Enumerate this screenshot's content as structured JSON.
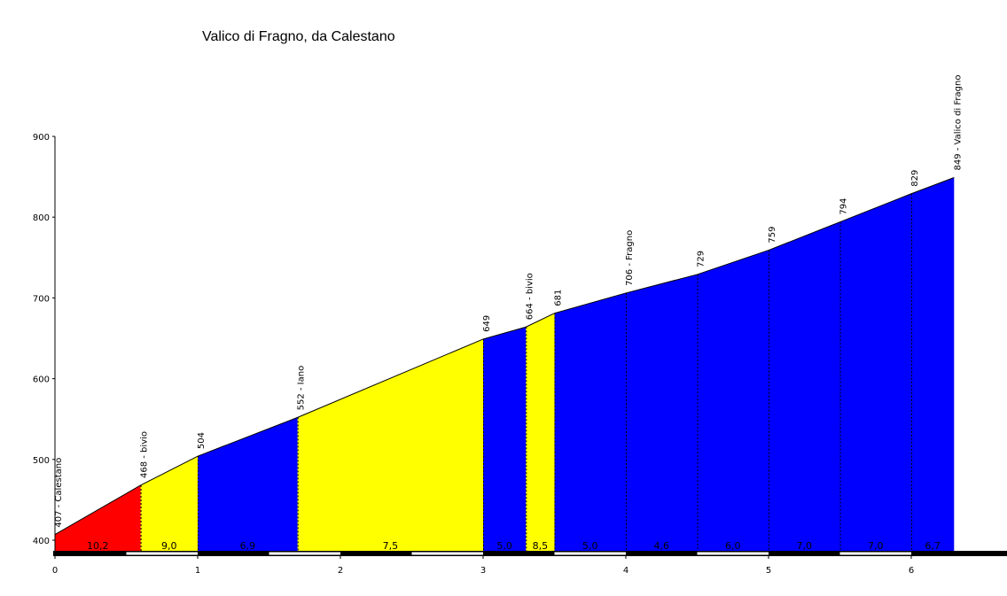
{
  "chart_data": {
    "type": "area",
    "title": "Valico di Fragno, da Calestano",
    "xlabel": "",
    "ylabel": "",
    "xlim": [
      0,
      6.3
    ],
    "ylim": [
      400,
      900
    ],
    "x_ticks": [
      "0",
      "1",
      "2",
      "3",
      "4",
      "5",
      "6"
    ],
    "y_ticks": [
      "400",
      "500",
      "600",
      "700",
      "800",
      "900"
    ],
    "points": [
      {
        "x": 0.0,
        "y": 407,
        "label": "407 - Calestano"
      },
      {
        "x": 0.6,
        "y": 468,
        "label": "468 - bivio"
      },
      {
        "x": 1.0,
        "y": 504,
        "label": "504"
      },
      {
        "x": 1.7,
        "y": 552,
        "label": "552 - Iano"
      },
      {
        "x": 3.0,
        "y": 649,
        "label": "649"
      },
      {
        "x": 3.3,
        "y": 664,
        "label": "664 - bivio"
      },
      {
        "x": 3.5,
        "y": 681,
        "label": "681"
      },
      {
        "x": 4.0,
        "y": 706,
        "label": "706 - Fragno"
      },
      {
        "x": 4.5,
        "y": 729,
        "label": "729"
      },
      {
        "x": 5.0,
        "y": 759,
        "label": "759"
      },
      {
        "x": 5.5,
        "y": 794,
        "label": "794"
      },
      {
        "x": 6.0,
        "y": 829,
        "label": "829"
      },
      {
        "x": 6.3,
        "y": 849,
        "label": "849 - Valico di Fragno"
      }
    ],
    "segments": [
      {
        "from": 0.0,
        "to": 0.6,
        "gradient": "10,2",
        "color": "#ff0000"
      },
      {
        "from": 0.6,
        "to": 1.0,
        "gradient": "9,0",
        "color": "#ffff00"
      },
      {
        "from": 1.0,
        "to": 1.7,
        "gradient": "6,9",
        "color": "#0000ff"
      },
      {
        "from": 1.7,
        "to": 3.0,
        "gradient": "7,5",
        "color": "#ffff00"
      },
      {
        "from": 3.0,
        "to": 3.3,
        "gradient": "5,0",
        "color": "#0000ff"
      },
      {
        "from": 3.3,
        "to": 3.5,
        "gradient": "8,5",
        "color": "#ffff00"
      },
      {
        "from": 3.5,
        "to": 4.0,
        "gradient": "5,0",
        "color": "#0000ff"
      },
      {
        "from": 4.0,
        "to": 4.5,
        "gradient": "4,6",
        "color": "#0000ff"
      },
      {
        "from": 4.5,
        "to": 5.0,
        "gradient": "6,0",
        "color": "#0000ff"
      },
      {
        "from": 5.0,
        "to": 5.5,
        "gradient": "7,0",
        "color": "#0000ff"
      },
      {
        "from": 5.5,
        "to": 6.0,
        "gradient": "7,0",
        "color": "#0000ff"
      },
      {
        "from": 6.0,
        "to": 6.3,
        "gradient": "6,7",
        "color": "#0000ff"
      }
    ],
    "colors": {
      "red": "#ff0000",
      "yellow": "#ffff00",
      "blue": "#0000ff"
    }
  }
}
